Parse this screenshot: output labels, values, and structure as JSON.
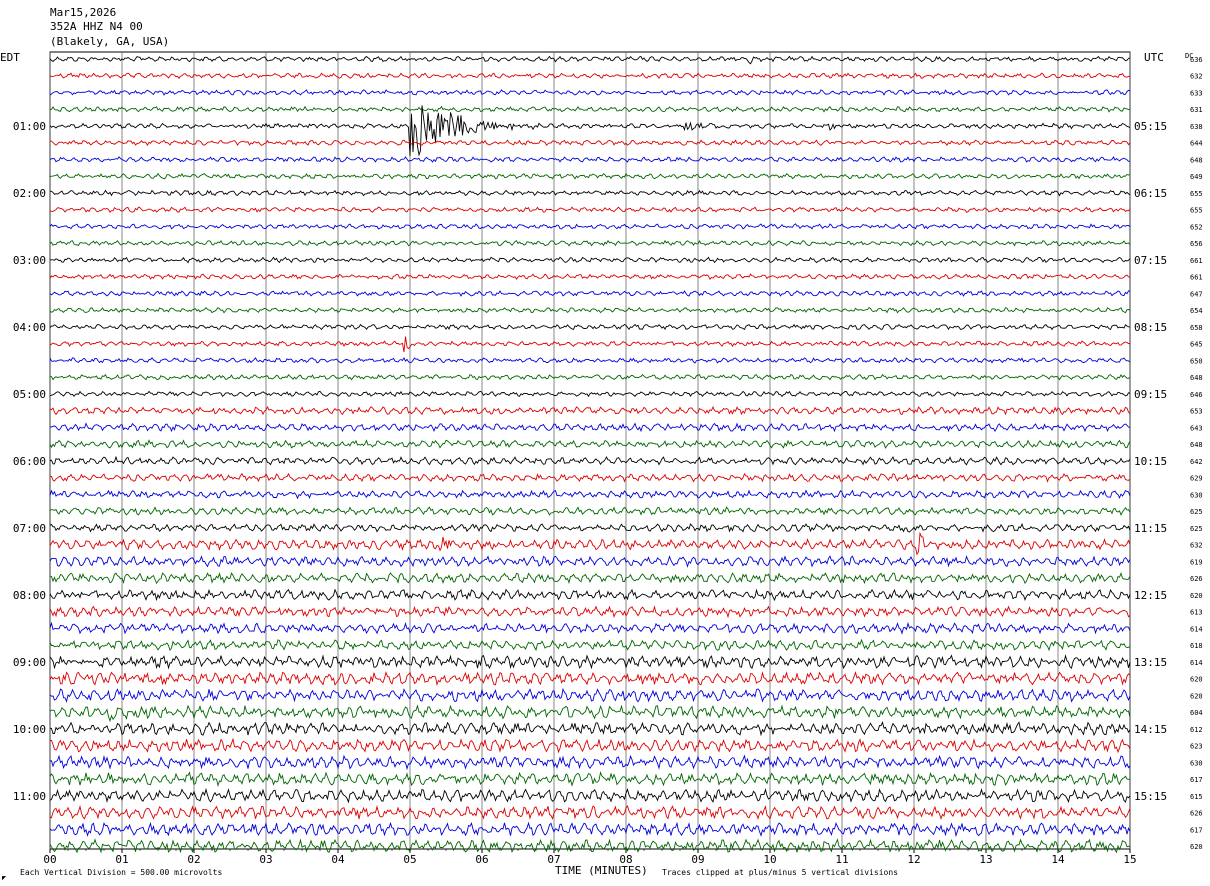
{
  "header": {
    "date": "Mar15,2026",
    "station": "352A HHZ N4 00",
    "location": "(Blakely, GA, USA)"
  },
  "labels": {
    "left_tz": "EDT",
    "right_tz": "UTC",
    "dc": "DC",
    "x_axis_title": "TIME (MINUTES)",
    "footer_left": "Each Vertical Division =  500.00 microvolts",
    "footer_right": "Traces clipped at plus/minus 5 vertical divisions",
    "footer_mark": "◤"
  },
  "colors": {
    "trace_cycle": [
      "#000000",
      "#dd0000",
      "#0000dd",
      "#006600"
    ],
    "grid": "#000000",
    "background": "#ffffff"
  },
  "chart_data": {
    "type": "line",
    "subtype": "helicorder",
    "x_ticks": [
      "00",
      "01",
      "02",
      "03",
      "04",
      "05",
      "06",
      "07",
      "08",
      "09",
      "10",
      "11",
      "12",
      "13",
      "14",
      "15"
    ],
    "xlim": [
      0,
      15
    ],
    "minutes_per_row": 15,
    "rows": 48,
    "left_hour_labels": [
      "01:00",
      "02:00",
      "03:00",
      "04:00",
      "05:00",
      "06:00",
      "07:00",
      "08:00",
      "09:00",
      "10:00",
      "11:00"
    ],
    "right_hour_labels": [
      "05:15",
      "06:15",
      "07:15",
      "08:15",
      "09:15",
      "10:15",
      "11:15",
      "12:15",
      "13:15",
      "14:15",
      "15:15"
    ],
    "hour_label_first_row": 4,
    "hour_label_row_step": 4,
    "dc_values": [
      636,
      632,
      633,
      631,
      638,
      644,
      648,
      649,
      655,
      655,
      652,
      656,
      661,
      661,
      647,
      654,
      658,
      645,
      650,
      648,
      646,
      653,
      643,
      648,
      642,
      629,
      630,
      625,
      625,
      632,
      619,
      626,
      620,
      613,
      614,
      618,
      614,
      620,
      620,
      604,
      612,
      623,
      630,
      617,
      615,
      626,
      617,
      620
    ],
    "noise_level_per_row": [
      2,
      2,
      2,
      2,
      2,
      2,
      2,
      2,
      2,
      2,
      2,
      2,
      2,
      2,
      2,
      2,
      2,
      2,
      2,
      2,
      2,
      3,
      3,
      3,
      3,
      3,
      3,
      3,
      3,
      4,
      4,
      4,
      4,
      4,
      4,
      4,
      5,
      5,
      5,
      5,
      5,
      5,
      5,
      5,
      5,
      5,
      5,
      5
    ],
    "events": [
      {
        "row": 0,
        "minute": 9.7,
        "amplitude": 5,
        "duration": 0.05
      },
      {
        "row": 4,
        "minute": 5.0,
        "amplitude": 40,
        "duration": 1.8
      },
      {
        "row": 4,
        "minute": 8.8,
        "amplitude": 6,
        "duration": 0.6
      },
      {
        "row": 4,
        "minute": 10.8,
        "amplitude": 4,
        "duration": 0.5
      },
      {
        "row": 17,
        "minute": 4.9,
        "amplitude": 8,
        "duration": 0.1
      },
      {
        "row": 28,
        "minute": 11.9,
        "amplitude": 7,
        "duration": 0.1
      },
      {
        "row": 29,
        "minute": 5.4,
        "amplitude": 8,
        "duration": 0.15
      },
      {
        "row": 29,
        "minute": 12.0,
        "amplitude": 8,
        "duration": 0.15
      },
      {
        "row": 39,
        "minute": 0.8,
        "amplitude": 9,
        "duration": 0.6
      }
    ]
  }
}
